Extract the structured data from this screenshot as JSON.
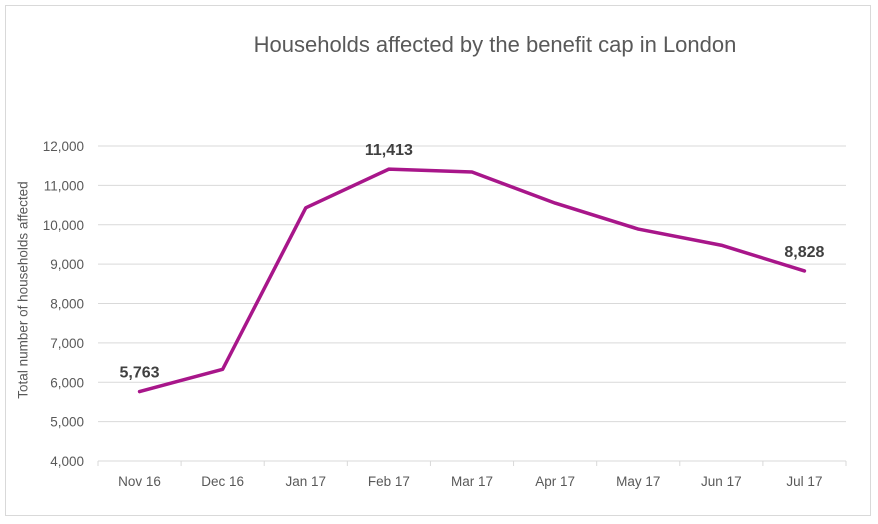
{
  "chart_data": {
    "type": "line",
    "title": "Households affected by the benefit cap in London",
    "xlabel": "",
    "ylabel": "Total number of households affected",
    "categories": [
      "Nov 16",
      "Dec 16",
      "Jan 17",
      "Feb 17",
      "Mar 17",
      "Apr 17",
      "May 17",
      "Jun 17",
      "Jul 17"
    ],
    "series": [
      {
        "name": "Households affected",
        "color": "#a8168a",
        "values": [
          5763,
          6330,
          10430,
          11413,
          11340,
          10550,
          9890,
          9480,
          8828
        ]
      }
    ],
    "data_labels": [
      {
        "index": 0,
        "text": "5,763"
      },
      {
        "index": 3,
        "text": "11,413"
      },
      {
        "index": 8,
        "text": "8,828"
      }
    ],
    "ylim": [
      4000,
      12000
    ],
    "yticks": [
      4000,
      5000,
      6000,
      7000,
      8000,
      9000,
      10000,
      11000,
      12000
    ],
    "ytick_labels": [
      "4,000",
      "5,000",
      "6,000",
      "7,000",
      "8,000",
      "9,000",
      "10,000",
      "11,000",
      "12,000"
    ],
    "grid": true,
    "legend": "none"
  }
}
